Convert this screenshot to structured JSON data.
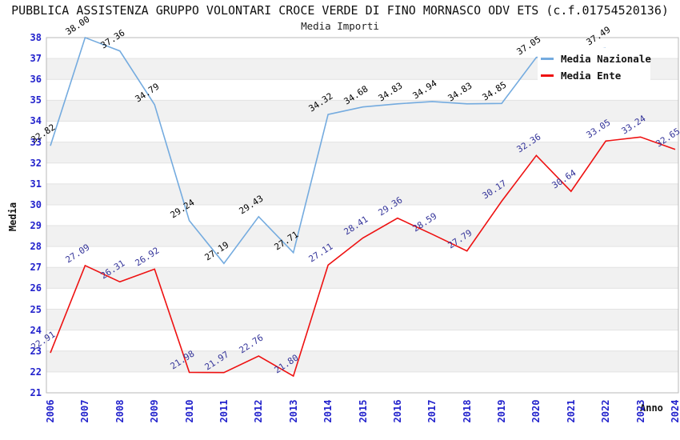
{
  "page": {
    "title": "PUBBLICA ASSISTENZA GRUPPO VOLONTARI CROCE VERDE DI FINO MORNASCO ODV ETS (c.f.01754520136)",
    "subtitle": "Media Importi"
  },
  "chart_data": {
    "type": "line",
    "title": "PUBBLICA ASSISTENZA GRUPPO VOLONTARI CROCE VERDE DI FINO MORNASCO ODV ETS (c.f.01754520136)",
    "subtitle": "Media Importi",
    "xlabel": "Anno",
    "ylabel": "Media",
    "ylim": [
      21,
      38
    ],
    "y_tick_step": 1,
    "grid": "horizontal-stripes-1unit",
    "legend_position": "top-right",
    "x": [
      2006,
      2007,
      2008,
      2009,
      2010,
      2011,
      2012,
      2013,
      2014,
      2015,
      2016,
      2017,
      2018,
      2019,
      2020,
      2021,
      2022,
      2023,
      2024
    ],
    "series": [
      {
        "name": "Media Nazionale",
        "color": "#74abdf",
        "label_color": "#000000",
        "values": [
          32.82,
          38.0,
          37.36,
          34.79,
          29.24,
          27.19,
          29.43,
          27.71,
          34.32,
          34.68,
          34.83,
          34.94,
          34.83,
          34.85,
          37.05,
          null,
          37.49,
          null,
          null
        ],
        "note": "line from 2020 onward is hidden behind the legend box; only the 37.49 label at 2022 is visible"
      },
      {
        "name": "Media Ente",
        "color": "#ee1111",
        "label_color": "#333399",
        "values": [
          22.91,
          27.09,
          26.31,
          26.92,
          21.98,
          21.97,
          22.76,
          21.8,
          27.11,
          28.41,
          29.36,
          28.59,
          27.79,
          30.17,
          32.36,
          30.64,
          33.05,
          33.24,
          32.65
        ]
      }
    ],
    "colors": {
      "tick_label": "#2222cc",
      "axis_title": "#111111",
      "stripe": "#f1f1f1",
      "gridline": "#e2e2e2",
      "plot_border": "#b8b8b8",
      "background": "#ffffff"
    }
  }
}
